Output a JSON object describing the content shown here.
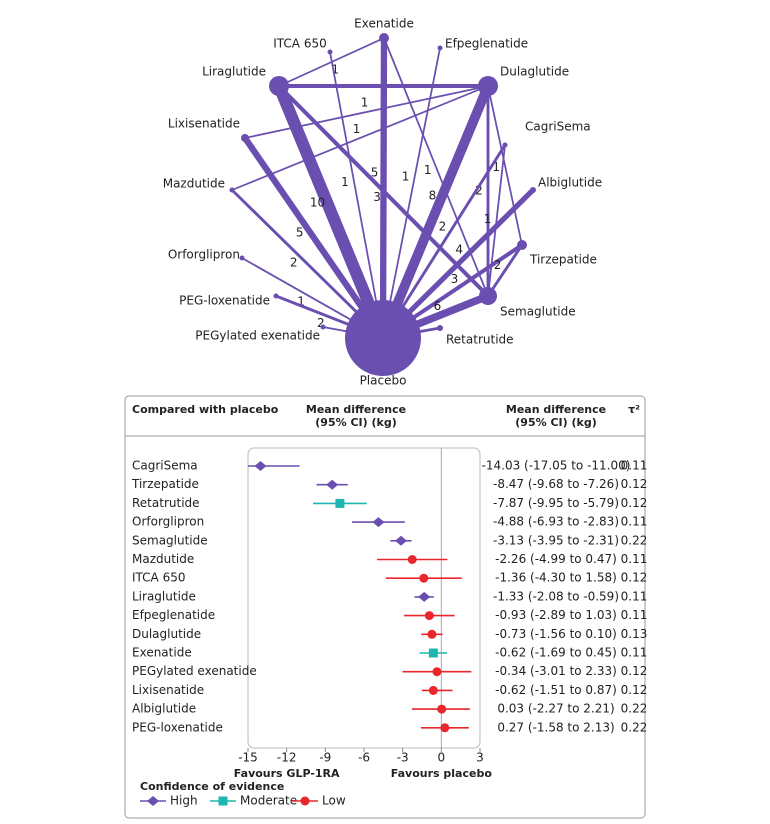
{
  "chart_data": [
    {
      "type": "network",
      "color": "#6a4fb0",
      "nodes": [
        "Exenatide",
        "ITCA 650",
        "Efpeglenatide",
        "Liraglutide",
        "Dulaglutide",
        "CagriSema",
        "Lixisenatide",
        "Albiglutide",
        "Mazdutide",
        "Tirzepatide",
        "Orforglipron",
        "Semaglutide",
        "PEG-loxenatide",
        "Retatrutide",
        "PEGylated exenatide",
        "Placebo"
      ],
      "edges": [
        {
          "from": "Liraglutide",
          "to": "Dulaglutide",
          "value": 3
        },
        {
          "from": "Liraglutide",
          "to": "Placebo",
          "value": 10
        },
        {
          "from": "Liraglutide",
          "to": "Semaglutide",
          "value": 3
        },
        {
          "from": "Liraglutide",
          "to": "Exenatide",
          "value": 1
        },
        {
          "from": "Exenatide",
          "to": "Placebo",
          "value": 5
        },
        {
          "from": "Exenatide",
          "to": "Semaglutide",
          "value": 1
        },
        {
          "from": "ITCA 650",
          "to": "Placebo",
          "value": 1
        },
        {
          "from": "Efpeglenatide",
          "to": "Placebo",
          "value": 1
        },
        {
          "from": "Dulaglutide",
          "to": "Placebo",
          "value": 8
        },
        {
          "from": "Dulaglutide",
          "to": "Lixisenatide",
          "value": 1
        },
        {
          "from": "Dulaglutide",
          "to": "Mazdutide",
          "value": 1
        },
        {
          "from": "Dulaglutide",
          "to": "Semaglutide",
          "value": 2
        },
        {
          "from": "Dulaglutide",
          "to": "Tirzepatide",
          "value": 1
        },
        {
          "from": "CagriSema",
          "to": "Placebo",
          "value": 2
        },
        {
          "from": "CagriSema",
          "to": "Semaglutide",
          "value": 1
        },
        {
          "from": "Albiglutide",
          "to": "Placebo",
          "value": 4
        },
        {
          "from": "Tirzepatide",
          "to": "Placebo",
          "value": 3
        },
        {
          "from": "Tirzepatide",
          "to": "Semaglutide",
          "value": 2
        },
        {
          "from": "Lixisenatide",
          "to": "Placebo",
          "value": 5
        },
        {
          "from": "Mazdutide",
          "to": "Placebo",
          "value": 2
        },
        {
          "from": "Orforglipron",
          "to": "Placebo",
          "value": 1
        },
        {
          "from": "PEG-loxenatide",
          "to": "Placebo",
          "value": 2
        },
        {
          "from": "PEGylated exenatide",
          "to": "Placebo",
          "value": 1
        },
        {
          "from": "Semaglutide",
          "to": "Placebo",
          "value": 6
        },
        {
          "from": "Retatrutide",
          "to": "Placebo",
          "value": 2
        }
      ]
    },
    {
      "type": "forest",
      "column_headers": [
        [
          "Compared with placebo"
        ],
        [
          "Mean difference",
          "(95% CI) (kg)"
        ],
        [
          "Mean difference",
          "(95% CI) (kg)"
        ],
        [
          "τ²"
        ]
      ],
      "categories": [
        "CagriSema",
        "Tirzepatide",
        "Retatrutide",
        "Orforglipron",
        "Semaglutide",
        "Mazdutide",
        "ITCA 650",
        "Liraglutide",
        "Efpeglenatide",
        "Dulaglutide",
        "Exenatide",
        "PEGylated exenatide",
        "Lixisenatide",
        "Albiglutide",
        "PEG-loxenatide"
      ],
      "values": [
        -14.03,
        -8.47,
        -7.87,
        -4.88,
        -3.13,
        -2.26,
        -1.36,
        -1.33,
        -0.93,
        -0.73,
        -0.62,
        -0.34,
        -0.62,
        0.03,
        0.27
      ],
      "lower": [
        -17.05,
        -9.68,
        -9.95,
        -6.93,
        -3.95,
        -4.99,
        -4.3,
        -2.08,
        -2.89,
        -1.56,
        -1.69,
        -3.01,
        -1.51,
        -2.27,
        -1.58
      ],
      "upper": [
        -11.0,
        -7.26,
        -5.79,
        -2.83,
        -2.31,
        0.47,
        1.58,
        -0.59,
        1.03,
        0.1,
        0.45,
        2.33,
        0.87,
        2.21,
        2.13
      ],
      "value_labels": [
        "-14.03 (-17.05 to -11.00)",
        "-8.47 (-9.68 to -7.26)",
        "-7.87 (-9.95 to -5.79)",
        "-4.88 (-6.93 to -2.83)",
        "-3.13 (-3.95 to -2.31)",
        "-2.26 (-4.99 to 0.47)",
        "-1.36 (-4.30 to 1.58)",
        "-1.33 (-2.08 to -0.59)",
        "-0.93 (-2.89 to 1.03)",
        "-0.73 (-1.56 to 0.10)",
        "-0.62 (-1.69 to 0.45)",
        "-0.34 (-3.01 to 2.33)",
        "-0.62 (-1.51 to 0.87)",
        "0.03 (-2.27 to 2.21)",
        "0.27 (-1.58 to 2.13)"
      ],
      "tau2": [
        0.11,
        0.12,
        0.12,
        0.11,
        0.22,
        0.11,
        0.12,
        0.11,
        0.11,
        0.13,
        0.11,
        0.12,
        0.12,
        0.22,
        0.22
      ],
      "confidence": [
        "High",
        "High",
        "Moderate",
        "High",
        "High",
        "Low",
        "Low",
        "High",
        "Low",
        "Low",
        "Moderate",
        "Low",
        "Low",
        "Low",
        "Low"
      ],
      "legend": {
        "title": "Confidence of evidence",
        "levels": [
          {
            "name": "High",
            "color": "#6a4fb0",
            "marker": "diamond"
          },
          {
            "name": "Moderate",
            "color": "#1fb5b0",
            "marker": "square"
          },
          {
            "name": "Low",
            "color": "#e8262b",
            "marker": "circle"
          }
        ]
      },
      "xlim": [
        -15,
        3
      ],
      "xticks": [
        -15,
        -12,
        -9,
        -6,
        -3,
        0,
        3
      ],
      "xlabel_left": "Favours GLP-1RA",
      "xlabel_right": "Favours placebo"
    }
  ]
}
